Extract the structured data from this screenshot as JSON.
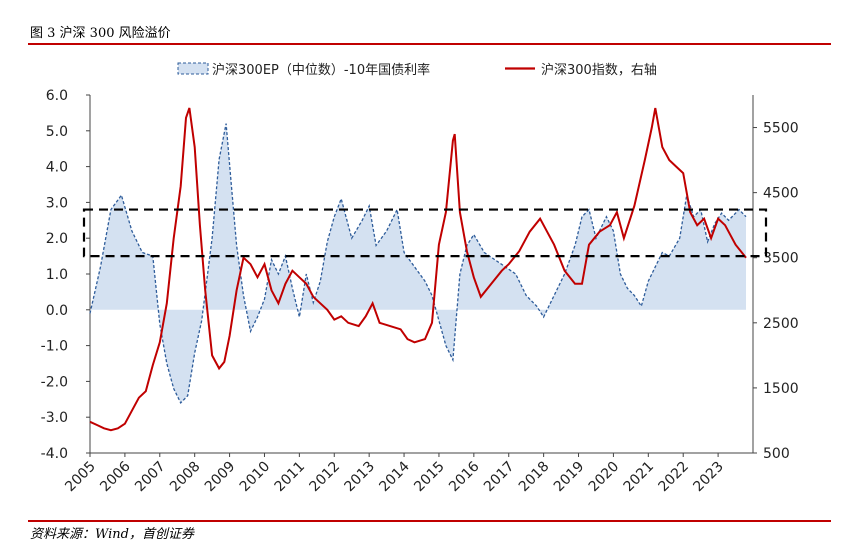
{
  "header": {
    "title": "图 3 沪深 300 风险溢价"
  },
  "footer": {
    "source": "资料来源：Wind，首创证券"
  },
  "chart_data": {
    "type": "line",
    "x_labels": [
      "2005",
      "2006",
      "2007",
      "2008",
      "2009",
      "2010",
      "2011",
      "2012",
      "2013",
      "2014",
      "2015",
      "2016",
      "2017",
      "2018",
      "2019",
      "2020",
      "2021",
      "2022",
      "2023"
    ],
    "x_range": [
      2005.0,
      2024.0
    ],
    "y_left": {
      "ticks": [
        "6.0",
        "5.0",
        "4.0",
        "3.0",
        "2.0",
        "1.0",
        "0.0",
        "-1.0",
        "-2.0",
        "-3.0",
        "-4.0"
      ],
      "range": [
        -4.0,
        6.0
      ]
    },
    "y_right": {
      "ticks": [
        "5500",
        "4500",
        "3500",
        "2500",
        "1500",
        "500"
      ],
      "range": [
        500,
        6000
      ]
    },
    "legend": {
      "position": "top",
      "items": [
        {
          "label": "沪深300EP（中位数）-10年国债利率",
          "color": "#1f4e8c",
          "style": "dashed-area"
        },
        {
          "label": "沪深300指数，右轴",
          "color": "#c00000",
          "style": "line"
        }
      ]
    },
    "band": {
      "y_low": 1.5,
      "y_high": 2.8,
      "style": "dashed-box"
    },
    "series": [
      {
        "name": "沪深300EP（中位数）-10年国债利率",
        "axis": "left",
        "x": [
          2005.0,
          2005.3,
          2005.6,
          2005.9,
          2006.2,
          2006.5,
          2006.8,
          2007.0,
          2007.2,
          2007.4,
          2007.6,
          2007.8,
          2008.0,
          2008.2,
          2008.5,
          2008.7,
          2008.9,
          2009.05,
          2009.2,
          2009.4,
          2009.6,
          2009.8,
          2010.0,
          2010.2,
          2010.4,
          2010.6,
          2010.8,
          2011.0,
          2011.2,
          2011.4,
          2011.6,
          2011.8,
          2012.0,
          2012.2,
          2012.5,
          2012.8,
          2013.0,
          2013.2,
          2013.5,
          2013.8,
          2014.0,
          2014.3,
          2014.6,
          2014.8,
          2015.0,
          2015.2,
          2015.4,
          2015.6,
          2015.8,
          2016.0,
          2016.3,
          2016.6,
          2016.9,
          2017.2,
          2017.5,
          2017.8,
          2018.0,
          2018.3,
          2018.6,
          2018.9,
          2019.1,
          2019.3,
          2019.5,
          2019.8,
          2020.0,
          2020.2,
          2020.4,
          2020.6,
          2020.8,
          2021.0,
          2021.2,
          2021.4,
          2021.6,
          2021.9,
          2022.1,
          2022.3,
          2022.5,
          2022.7,
          2022.9,
          2023.1,
          2023.3,
          2023.6,
          2023.8
        ],
        "y": [
          -0.1,
          1.2,
          2.8,
          3.2,
          2.2,
          1.6,
          1.5,
          -0.4,
          -1.5,
          -2.2,
          -2.6,
          -2.4,
          -1.2,
          -0.3,
          2.0,
          4.2,
          5.2,
          3.5,
          1.8,
          0.4,
          -0.6,
          -0.2,
          0.3,
          1.4,
          1.0,
          1.5,
          0.6,
          -0.2,
          1.0,
          0.2,
          0.8,
          1.9,
          2.6,
          3.1,
          2.0,
          2.5,
          2.9,
          1.8,
          2.2,
          2.8,
          1.6,
          1.2,
          0.8,
          0.4,
          -0.3,
          -1.0,
          -1.4,
          1.0,
          1.8,
          2.1,
          1.6,
          1.4,
          1.2,
          1.0,
          0.4,
          0.1,
          -0.2,
          0.4,
          1.0,
          1.8,
          2.6,
          2.8,
          2.0,
          2.6,
          2.2,
          1.0,
          0.6,
          0.4,
          0.1,
          0.8,
          1.2,
          1.6,
          1.5,
          2.0,
          3.2,
          2.6,
          2.8,
          1.9,
          2.4,
          2.7,
          2.5,
          2.8,
          2.6
        ]
      },
      {
        "name": "沪深300指数，右轴",
        "axis": "right",
        "x": [
          2005.0,
          2005.2,
          2005.4,
          2005.6,
          2005.8,
          2006.0,
          2006.2,
          2006.4,
          2006.6,
          2006.8,
          2007.0,
          2007.2,
          2007.4,
          2007.6,
          2007.75,
          2007.85,
          2008.0,
          2008.15,
          2008.3,
          2008.5,
          2008.7,
          2008.85,
          2009.0,
          2009.2,
          2009.4,
          2009.6,
          2009.8,
          2010.0,
          2010.2,
          2010.4,
          2010.6,
          2010.8,
          2011.0,
          2011.2,
          2011.4,
          2011.6,
          2011.8,
          2012.0,
          2012.2,
          2012.4,
          2012.7,
          2012.9,
          2013.1,
          2013.3,
          2013.6,
          2013.9,
          2014.1,
          2014.3,
          2014.6,
          2014.8,
          2015.0,
          2015.2,
          2015.4,
          2015.45,
          2015.6,
          2015.8,
          2016.0,
          2016.2,
          2016.5,
          2016.8,
          2017.0,
          2017.3,
          2017.6,
          2017.9,
          2018.1,
          2018.3,
          2018.6,
          2018.9,
          2019.1,
          2019.3,
          2019.6,
          2019.9,
          2020.1,
          2020.3,
          2020.6,
          2020.9,
          2021.1,
          2021.2,
          2021.4,
          2021.6,
          2021.8,
          2022.0,
          2022.2,
          2022.4,
          2022.6,
          2022.8,
          2023.0,
          2023.2,
          2023.5,
          2023.8
        ],
        "y": [
          980,
          930,
          880,
          850,
          880,
          950,
          1150,
          1350,
          1450,
          1850,
          2200,
          2800,
          3800,
          4600,
          5650,
          5800,
          5200,
          4000,
          3000,
          2000,
          1800,
          1900,
          2300,
          3000,
          3500,
          3400,
          3200,
          3400,
          3000,
          2800,
          3100,
          3300,
          3200,
          3100,
          2900,
          2800,
          2700,
          2550,
          2600,
          2500,
          2450,
          2600,
          2800,
          2500,
          2450,
          2400,
          2250,
          2200,
          2250,
          2500,
          3700,
          4200,
          5300,
          5400,
          4200,
          3600,
          3200,
          2900,
          3100,
          3300,
          3400,
          3600,
          3900,
          4100,
          3900,
          3700,
          3300,
          3100,
          3100,
          3700,
          3900,
          4000,
          4200,
          3800,
          4300,
          5000,
          5500,
          5800,
          5200,
          5000,
          4900,
          4800,
          4200,
          4000,
          4100,
          3800,
          4100,
          4000,
          3700,
          3500
        ]
      }
    ]
  }
}
